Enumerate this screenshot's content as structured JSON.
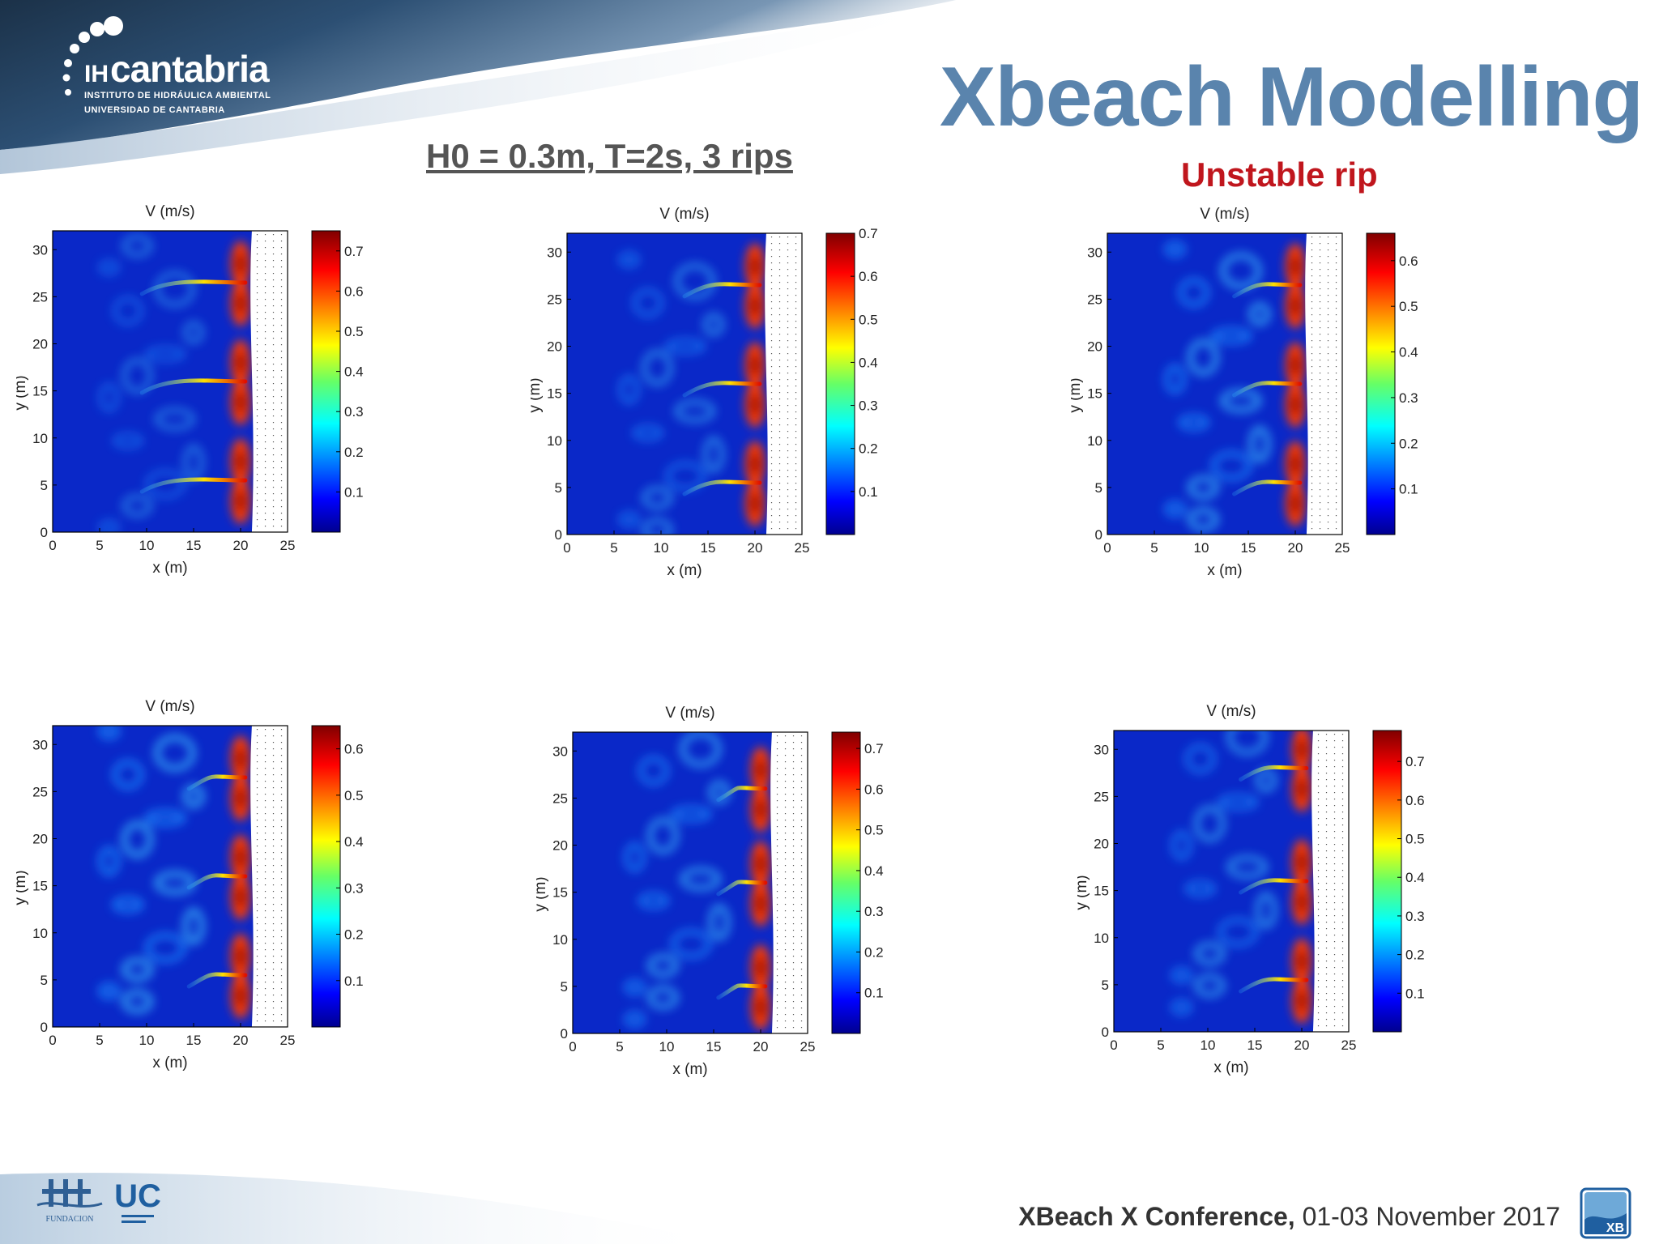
{
  "header": {
    "logo_text": "cantabria",
    "logo_prefix": "IH",
    "logo_sub1": "INSTITUTO DE HIDRÁULICA AMBIENTAL",
    "logo_sub2": "UNIVERSIDAD DE CANTABRIA",
    "title": "Xbeach Modelling",
    "subtitle": "H0 = 0.3m, T=2s, 3 rips",
    "annotation": "Unstable rip"
  },
  "footer": {
    "conference_bold": "XBeach X Conference,",
    "conference_date": " 01-03 November 2017",
    "fund_logo_text": "FUNDACION",
    "uc_logo_text": "UC",
    "xb_logo_text": "XB"
  },
  "colors": {
    "title": "#5a84ad",
    "annotation": "#c0161d",
    "field_background": "#0a28c8"
  },
  "chart_data": [
    {
      "type": "heatmap",
      "title": "V (m/s)",
      "xlabel": "x (m)",
      "ylabel": "y (m)",
      "xlim": [
        0,
        25
      ],
      "ylim": [
        0,
        32
      ],
      "xticks": [
        "0",
        "5",
        "10",
        "15",
        "20",
        "25"
      ],
      "yticks": [
        "0",
        "5",
        "10",
        "15",
        "20",
        "25",
        "30"
      ],
      "colorbar_ticks": [
        "0.1",
        "0.2",
        "0.3",
        "0.4",
        "0.5",
        "0.6",
        "0.7"
      ],
      "colorbar_max": 0.75,
      "dry_area_x": [
        21.2,
        25
      ],
      "rip_y": [
        5.5,
        16,
        26.5
      ],
      "rip_extent_x": 11,
      "eddy_intensity": 0.15
    },
    {
      "type": "heatmap",
      "title": "V (m/s)",
      "xlabel": "x (m)",
      "ylabel": "y (m)",
      "xlim": [
        0,
        25
      ],
      "ylim": [
        0,
        32
      ],
      "xticks": [
        "0",
        "5",
        "10",
        "15",
        "20",
        "25"
      ],
      "yticks": [
        "0",
        "5",
        "10",
        "15",
        "20",
        "25",
        "30"
      ],
      "colorbar_ticks": [
        "0.1",
        "0.2",
        "0.3",
        "0.4",
        "0.5",
        "0.6",
        "0.7"
      ],
      "colorbar_max": 0.7,
      "dry_area_x": [
        21.2,
        25
      ],
      "rip_y": [
        5.5,
        16,
        26.5
      ],
      "rip_extent_x": 8,
      "eddy_intensity": 0.2
    },
    {
      "type": "heatmap",
      "title": "V (m/s)",
      "xlabel": "x (m)",
      "ylabel": "y (m)",
      "xlim": [
        0,
        25
      ],
      "ylim": [
        0,
        32
      ],
      "xticks": [
        "0",
        "5",
        "10",
        "15",
        "20",
        "25"
      ],
      "yticks": [
        "0",
        "5",
        "10",
        "15",
        "20",
        "25",
        "30"
      ],
      "colorbar_ticks": [
        "0.1",
        "0.2",
        "0.3",
        "0.4",
        "0.5",
        "0.6"
      ],
      "colorbar_max": 0.66,
      "dry_area_x": [
        21.2,
        25
      ],
      "rip_y": [
        5.5,
        16,
        26.5
      ],
      "rip_extent_x": 7,
      "eddy_intensity": 0.28
    },
    {
      "type": "heatmap",
      "title": "V (m/s)",
      "xlabel": "x (m)",
      "ylabel": "y (m)",
      "xlim": [
        0,
        25
      ],
      "ylim": [
        0,
        32
      ],
      "xticks": [
        "0",
        "5",
        "10",
        "15",
        "20",
        "25"
      ],
      "yticks": [
        "0",
        "5",
        "10",
        "15",
        "20",
        "25",
        "30"
      ],
      "colorbar_ticks": [
        "0.1",
        "0.2",
        "0.3",
        "0.4",
        "0.5",
        "0.6"
      ],
      "colorbar_max": 0.65,
      "dry_area_x": [
        21.2,
        25
      ],
      "rip_y": [
        5.5,
        16,
        26.5
      ],
      "rip_extent_x": 6,
      "eddy_intensity": 0.3
    },
    {
      "type": "heatmap",
      "title": "V (m/s)",
      "xlabel": "x (m)",
      "ylabel": "y (m)",
      "xlim": [
        0,
        25
      ],
      "ylim": [
        0,
        32
      ],
      "xticks": [
        "0",
        "5",
        "10",
        "15",
        "20",
        "25"
      ],
      "yticks": [
        "0",
        "5",
        "10",
        "15",
        "20",
        "25",
        "30"
      ],
      "colorbar_ticks": [
        "0.1",
        "0.2",
        "0.3",
        "0.4",
        "0.5",
        "0.6",
        "0.7"
      ],
      "colorbar_max": 0.74,
      "dry_area_x": [
        21.2,
        25
      ],
      "rip_y": [
        5,
        16,
        26
      ],
      "rip_extent_x": 5,
      "eddy_intensity": 0.26
    },
    {
      "type": "heatmap",
      "title": "V (m/s)",
      "xlabel": "x (m)",
      "ylabel": "y (m)",
      "xlim": [
        0,
        25
      ],
      "ylim": [
        0,
        32
      ],
      "xticks": [
        "0",
        "5",
        "10",
        "15",
        "20",
        "25"
      ],
      "yticks": [
        "0",
        "5",
        "10",
        "15",
        "20",
        "25",
        "30"
      ],
      "colorbar_ticks": [
        "0.1",
        "0.2",
        "0.3",
        "0.4",
        "0.5",
        "0.6",
        "0.7"
      ],
      "colorbar_max": 0.78,
      "dry_area_x": [
        21.2,
        25
      ],
      "rip_y": [
        5.5,
        16,
        28
      ],
      "rip_extent_x": 7,
      "eddy_intensity": 0.24
    }
  ]
}
